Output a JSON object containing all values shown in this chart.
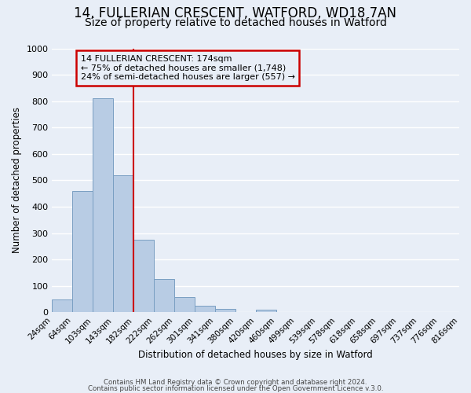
{
  "title": "14, FULLERIAN CRESCENT, WATFORD, WD18 7AN",
  "subtitle": "Size of property relative to detached houses in Watford",
  "xlabel": "Distribution of detached houses by size in Watford",
  "ylabel": "Number of detached properties",
  "bin_edges": [
    "24sqm",
    "64sqm",
    "103sqm",
    "143sqm",
    "182sqm",
    "222sqm",
    "262sqm",
    "301sqm",
    "341sqm",
    "380sqm",
    "420sqm",
    "460sqm",
    "499sqm",
    "539sqm",
    "578sqm",
    "618sqm",
    "658sqm",
    "697sqm",
    "737sqm",
    "776sqm",
    "816sqm"
  ],
  "bar_values": [
    48,
    460,
    810,
    520,
    275,
    125,
    58,
    25,
    12,
    0,
    10,
    0,
    0,
    0,
    0,
    0,
    0,
    0,
    0,
    0
  ],
  "bar_color": "#b8cce4",
  "bar_edge_color": "#7a9fc2",
  "bg_color": "#e8eef7",
  "grid_color": "#ffffff",
  "vline_color": "#cc0000",
  "annotation_title": "14 FULLERIAN CRESCENT: 174sqm",
  "annotation_line2": "← 75% of detached houses are smaller (1,748)",
  "annotation_line3": "24% of semi-detached houses are larger (557) →",
  "annotation_box_color": "#cc0000",
  "ylim": [
    0,
    1000
  ],
  "yticks": [
    0,
    100,
    200,
    300,
    400,
    500,
    600,
    700,
    800,
    900,
    1000
  ],
  "footer1": "Contains HM Land Registry data © Crown copyright and database right 2024.",
  "footer2": "Contains public sector information licensed under the Open Government Licence v.3.0.",
  "title_fontsize": 12,
  "subtitle_fontsize": 10
}
